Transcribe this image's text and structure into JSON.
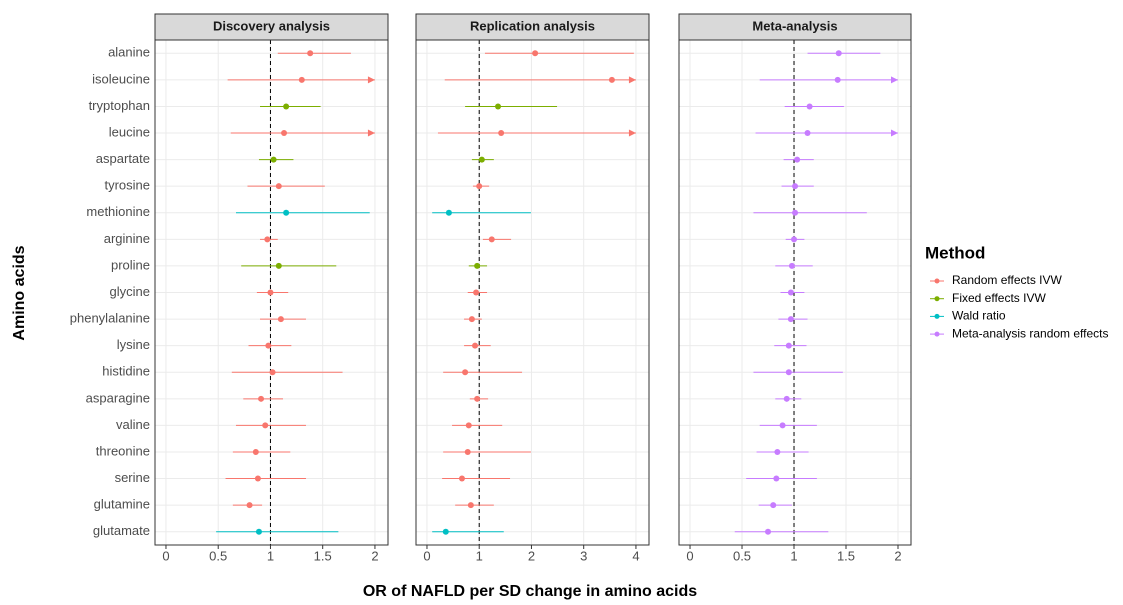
{
  "xlabel": "OR of NAFLD per SD change in amino acids",
  "ylabel": "Amino acids",
  "legend": {
    "title": "Method",
    "series": [
      {
        "name": "Random effects IVW",
        "color": "#F8766D"
      },
      {
        "name": "Fixed effects IVW",
        "color": "#7CAE00"
      },
      {
        "name": "Wald ratio",
        "color": "#00BFC4"
      },
      {
        "name": "Meta-analysis random effects",
        "color": "#C77CFF"
      }
    ]
  },
  "chart_data": [
    {
      "type": "forest",
      "title": "Discovery analysis",
      "categories": [
        "alanine",
        "isoleucine",
        "tryptophan",
        "leucine",
        "aspartate",
        "tyrosine",
        "methionine",
        "arginine",
        "proline",
        "glycine",
        "phenylalanine",
        "lysine",
        "histidine",
        "asparagine",
        "valine",
        "threonine",
        "serine",
        "glutamine",
        "glutamate"
      ],
      "method": [
        "Random effects IVW",
        "Random effects IVW",
        "Fixed effects IVW",
        "Random effects IVW",
        "Fixed effects IVW",
        "Random effects IVW",
        "Wald ratio",
        "Random effects IVW",
        "Fixed effects IVW",
        "Random effects IVW",
        "Random effects IVW",
        "Random effects IVW",
        "Random effects IVW",
        "Random effects IVW",
        "Random effects IVW",
        "Random effects IVW",
        "Random effects IVW",
        "Random effects IVW",
        "Wald ratio"
      ],
      "values": [
        1.38,
        1.3,
        1.15,
        1.13,
        1.03,
        1.08,
        1.15,
        0.97,
        1.08,
        1.0,
        1.1,
        0.98,
        1.02,
        0.91,
        0.95,
        0.86,
        0.88,
        0.8,
        0.89
      ],
      "lower": [
        1.07,
        0.59,
        0.9,
        0.62,
        0.89,
        0.78,
        0.67,
        0.9,
        0.72,
        0.87,
        0.9,
        0.79,
        0.63,
        0.74,
        0.67,
        0.64,
        0.57,
        0.64,
        0.48
      ],
      "upper": [
        1.77,
        2.0,
        1.48,
        2.0,
        1.22,
        1.52,
        1.95,
        1.07,
        1.63,
        1.17,
        1.34,
        1.2,
        1.69,
        1.12,
        1.34,
        1.19,
        1.34,
        0.92,
        1.65
      ],
      "xlim": [
        -0.105,
        2.125
      ],
      "xticks": [
        0,
        0.5,
        1,
        1.5,
        2
      ],
      "refline": 1,
      "grid": true
    },
    {
      "type": "forest",
      "title": "Replication analysis",
      "method": [
        "Random effects IVW",
        "Random effects IVW",
        "Fixed effects IVW",
        "Random effects IVW",
        "Fixed effects IVW",
        "Random effects IVW",
        "Wald ratio",
        "Random effects IVW",
        "Fixed effects IVW",
        "Random effects IVW",
        "Random effects IVW",
        "Random effects IVW",
        "Random effects IVW",
        "Random effects IVW",
        "Random effects IVW",
        "Random effects IVW",
        "Random effects IVW",
        "Random effects IVW",
        "Wald ratio"
      ],
      "values": [
        2.07,
        3.54,
        1.36,
        1.42,
        1.05,
        1.0,
        0.42,
        1.24,
        0.96,
        0.94,
        0.86,
        0.92,
        0.73,
        0.96,
        0.8,
        0.78,
        0.67,
        0.84,
        0.36
      ],
      "lower": [
        1.11,
        0.34,
        0.73,
        0.21,
        0.86,
        0.88,
        0.1,
        1.07,
        0.8,
        0.78,
        0.71,
        0.71,
        0.31,
        0.82,
        0.48,
        0.31,
        0.29,
        0.54,
        0.1
      ],
      "upper": [
        3.96,
        4.0,
        2.49,
        4.0,
        1.28,
        1.19,
        1.99,
        1.61,
        1.15,
        1.15,
        1.05,
        1.22,
        1.82,
        1.17,
        1.44,
        1.99,
        1.59,
        1.28,
        1.47
      ],
      "xlim": [
        -0.21,
        4.25
      ],
      "xticks": [
        0,
        1,
        2,
        3,
        4
      ],
      "refline": 1,
      "grid": true
    },
    {
      "type": "forest",
      "title": "Meta-analysis",
      "method": [
        "Meta-analysis random effects",
        "Meta-analysis random effects",
        "Meta-analysis random effects",
        "Meta-analysis random effects",
        "Meta-analysis random effects",
        "Meta-analysis random effects",
        "Meta-analysis random effects",
        "Meta-analysis random effects",
        "Meta-analysis random effects",
        "Meta-analysis random effects",
        "Meta-analysis random effects",
        "Meta-analysis random effects",
        "Meta-analysis random effects",
        "Meta-analysis random effects",
        "Meta-analysis random effects",
        "Meta-analysis random effects",
        "Meta-analysis random effects",
        "Meta-analysis random effects",
        "Meta-analysis random effects"
      ],
      "values": [
        1.43,
        1.42,
        1.15,
        1.13,
        1.03,
        1.01,
        1.01,
        1.0,
        0.98,
        0.97,
        0.97,
        0.95,
        0.95,
        0.93,
        0.89,
        0.84,
        0.83,
        0.8,
        0.75
      ],
      "lower": [
        1.13,
        0.67,
        0.91,
        0.63,
        0.9,
        0.88,
        0.61,
        0.92,
        0.82,
        0.87,
        0.85,
        0.81,
        0.61,
        0.82,
        0.67,
        0.64,
        0.54,
        0.66,
        0.43
      ],
      "upper": [
        1.83,
        2.0,
        1.48,
        2.0,
        1.19,
        1.19,
        1.7,
        1.1,
        1.18,
        1.1,
        1.13,
        1.12,
        1.47,
        1.07,
        1.22,
        1.14,
        1.22,
        0.98,
        1.33
      ],
      "xlim": [
        -0.106,
        2.125
      ],
      "xticks": [
        0,
        0.5,
        1,
        1.5,
        2
      ],
      "refline": 1,
      "grid": true
    }
  ]
}
